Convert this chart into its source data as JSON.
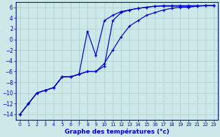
{
  "xlabel": "Graphe des températures (°c)",
  "xlim": [
    -0.5,
    23.5
  ],
  "ylim": [
    -15,
    7
  ],
  "yticks": [
    6,
    4,
    2,
    0,
    -2,
    -4,
    -6,
    -8,
    -10,
    -12,
    -14
  ],
  "xticks": [
    0,
    1,
    2,
    3,
    4,
    5,
    6,
    7,
    8,
    9,
    10,
    11,
    12,
    13,
    14,
    15,
    16,
    17,
    18,
    19,
    20,
    21,
    22,
    23
  ],
  "bg_color": "#cce8e8",
  "line_color": "#0000cc",
  "grid_color": "#aacccc",
  "line1_x": [
    0,
    1,
    2,
    3,
    4,
    5,
    6,
    7,
    8,
    9,
    10,
    11,
    12,
    13,
    14,
    15,
    16,
    17,
    18,
    19,
    20,
    21,
    22,
    23
  ],
  "line1_y": [
    -14,
    -12,
    -10,
    -9.5,
    -9,
    -7,
    -7,
    -6.5,
    -6,
    -6,
    -5,
    3.5,
    5,
    5.5,
    5.8,
    6,
    6.2,
    6.3,
    6.3,
    6.3,
    6.3,
    6.3,
    6.3,
    6.3
  ],
  "line2_x": [
    0,
    1,
    2,
    3,
    4,
    5,
    6,
    7,
    8,
    9,
    10,
    11,
    12,
    13,
    14,
    15,
    16,
    17,
    18,
    19,
    20,
    21,
    22,
    23
  ],
  "line2_y": [
    -14,
    -12,
    -10,
    -9.5,
    -9,
    -7,
    -7,
    -6.5,
    1.5,
    -3,
    3.5,
    4.5,
    5.2,
    5.5,
    5.8,
    6,
    6.2,
    6.2,
    6.2,
    6.2,
    6.2,
    6.2,
    6.3,
    6.3
  ],
  "line3_x": [
    0,
    1,
    2,
    3,
    4,
    5,
    6,
    7,
    8,
    9,
    10,
    11,
    12,
    13,
    14,
    15,
    16,
    17,
    18,
    19,
    20,
    21,
    22,
    23
  ],
  "line3_y": [
    -14,
    -12,
    -10,
    -9.5,
    -9,
    -7,
    -7,
    -6.5,
    -6,
    -6,
    -4.5,
    -2,
    0.5,
    2.5,
    3.5,
    4.5,
    5,
    5.5,
    5.8,
    6,
    6,
    6.2,
    6.3,
    6.3
  ]
}
